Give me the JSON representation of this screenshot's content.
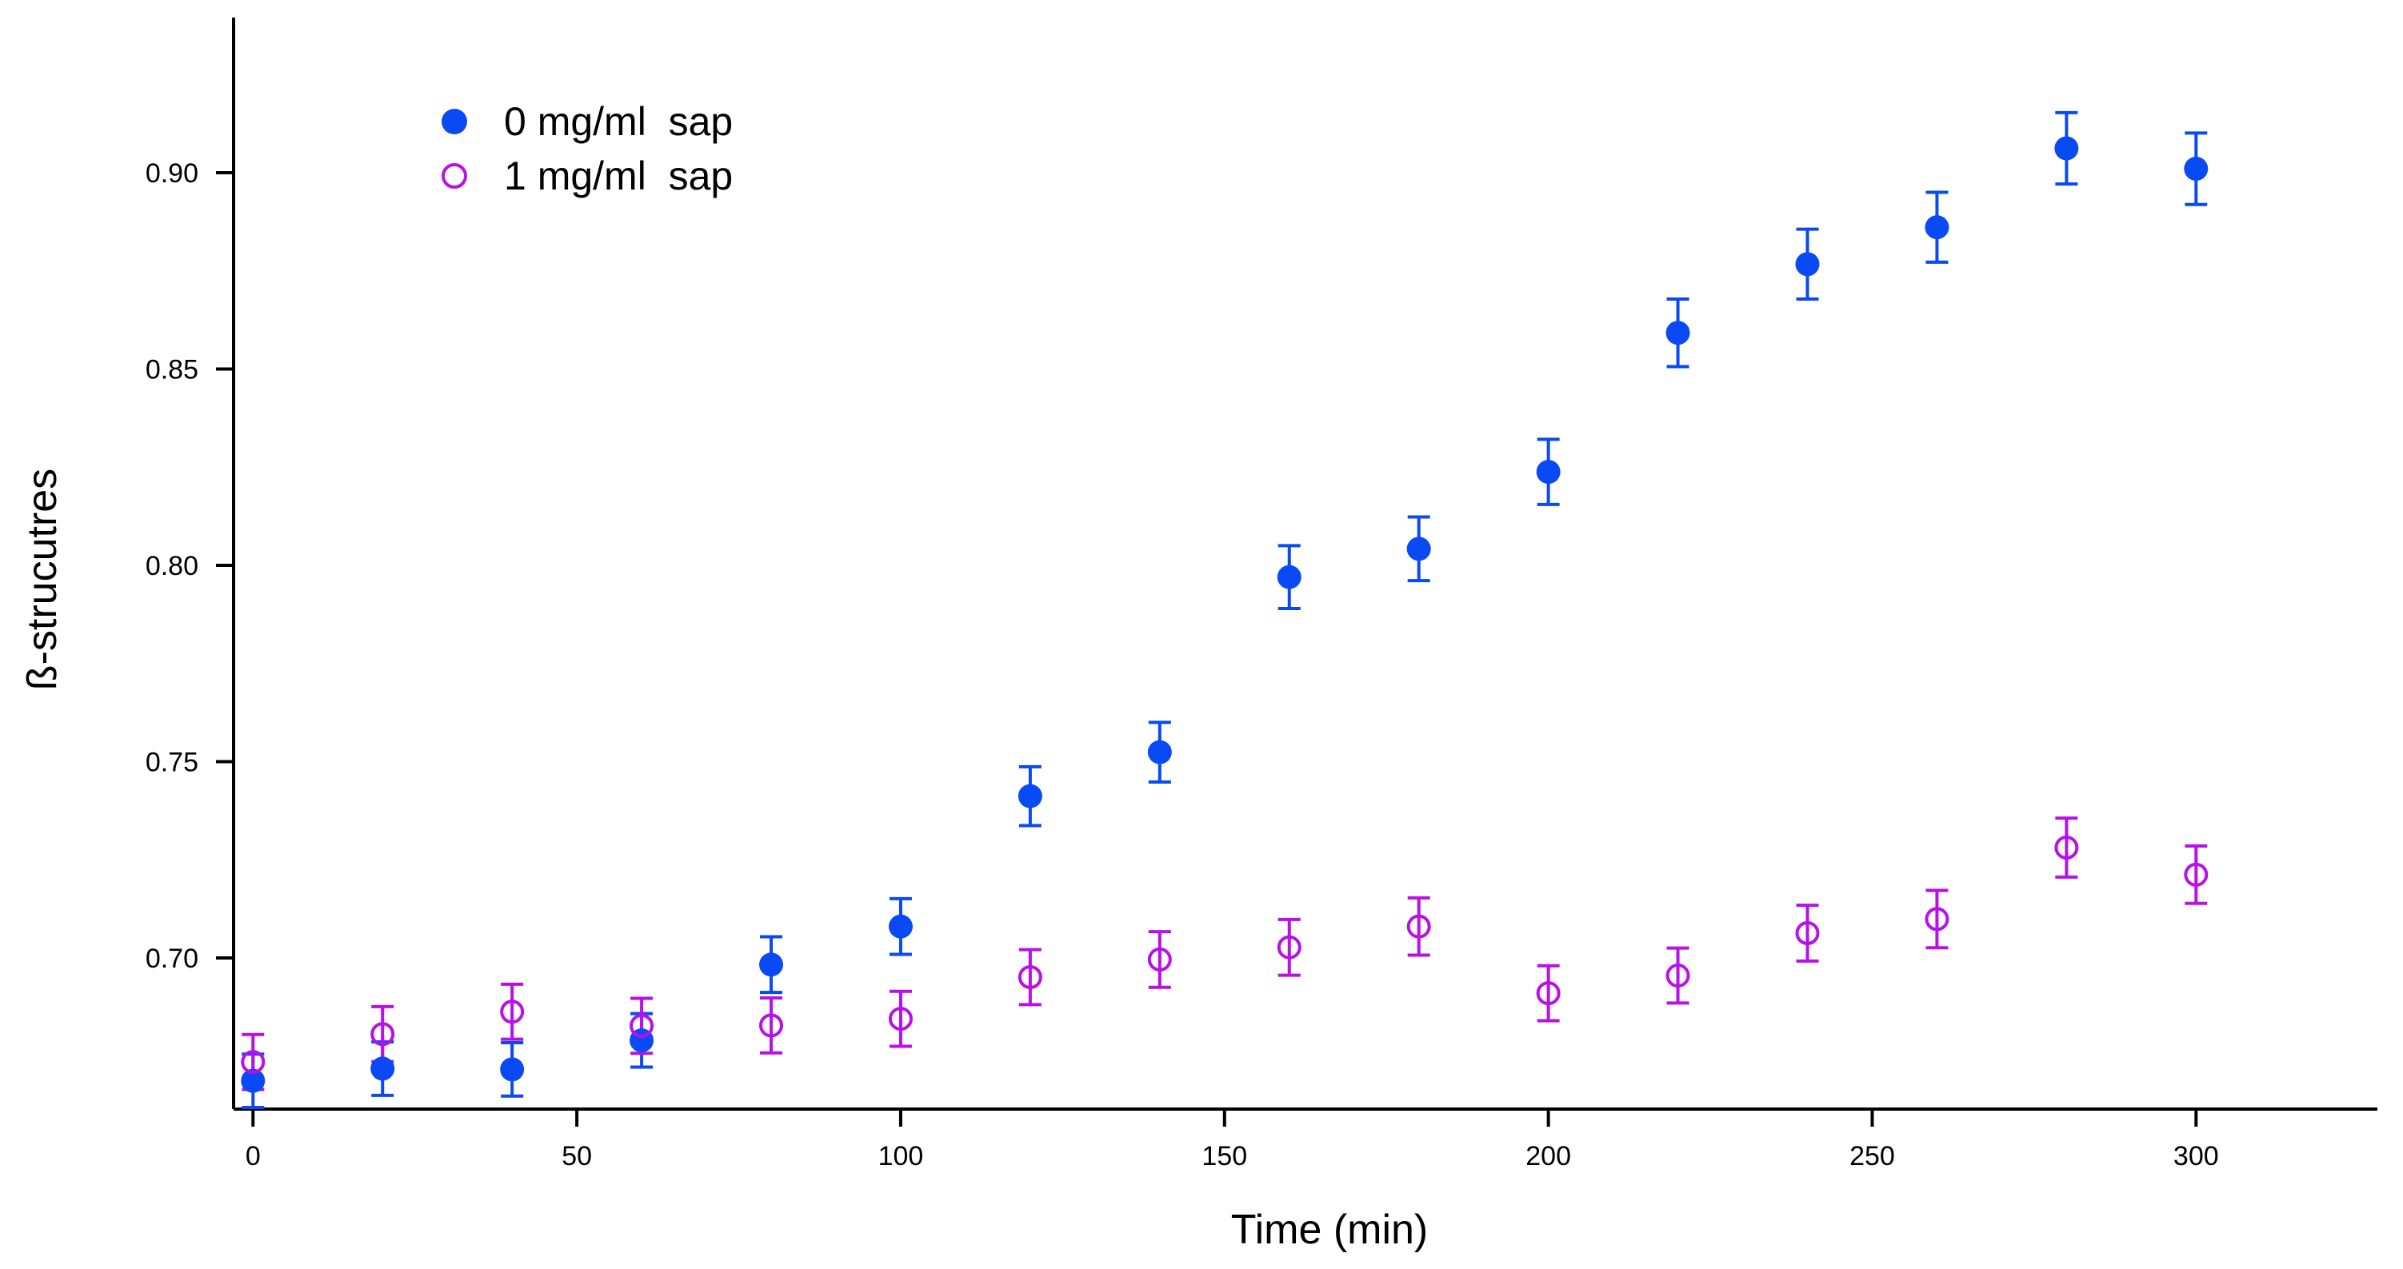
{
  "chart_data": {
    "type": "scatter",
    "title": "",
    "xlabel": "Time (min)",
    "ylabel": "ß-strucutres",
    "xlim": [
      -3,
      328
    ],
    "ylim": [
      0.6615,
      0.9395
    ],
    "x_ticks": [
      0,
      50,
      100,
      150,
      200,
      250,
      300
    ],
    "y_ticks": [
      0.7,
      0.75,
      0.8,
      0.85,
      0.9
    ],
    "y_tick_labels": [
      "0.70",
      "0.75",
      "0.80",
      "0.85",
      "0.90"
    ],
    "grid": false,
    "legend_position": "top-left",
    "x": [
      0,
      20,
      40,
      60,
      80,
      100,
      120,
      140,
      160,
      180,
      200,
      220,
      240,
      260,
      280,
      300
    ],
    "series": [
      {
        "name": "0 mg/ml  sap",
        "marker": "filled-circle",
        "color": "#0a4af5",
        "values": [
          0.6687,
          0.6718,
          0.6716,
          0.679,
          0.6983,
          0.708,
          0.7412,
          0.7524,
          0.797,
          0.8042,
          0.8238,
          0.8592,
          0.8767,
          0.8861,
          0.9062,
          0.901
        ],
        "errors": [
          0.0068,
          0.0068,
          0.0068,
          0.0068,
          0.0071,
          0.0071,
          0.0075,
          0.0076,
          0.008,
          0.0081,
          0.0083,
          0.0086,
          0.0089,
          0.0089,
          0.0091,
          0.0091
        ]
      },
      {
        "name": "1 mg/ml  sap",
        "marker": "open-circle",
        "color": "#b711e8",
        "values": [
          0.6735,
          0.6806,
          0.6863,
          0.6827,
          0.6828,
          0.6845,
          0.6951,
          0.6996,
          0.7027,
          0.708,
          0.691,
          0.6955,
          0.7063,
          0.7099,
          0.7281,
          0.7212
        ],
        "errors": [
          0.007,
          0.007,
          0.007,
          0.007,
          0.007,
          0.007,
          0.007,
          0.0071,
          0.0071,
          0.0073,
          0.007,
          0.007,
          0.0071,
          0.0073,
          0.0075,
          0.0073
        ]
      }
    ]
  }
}
